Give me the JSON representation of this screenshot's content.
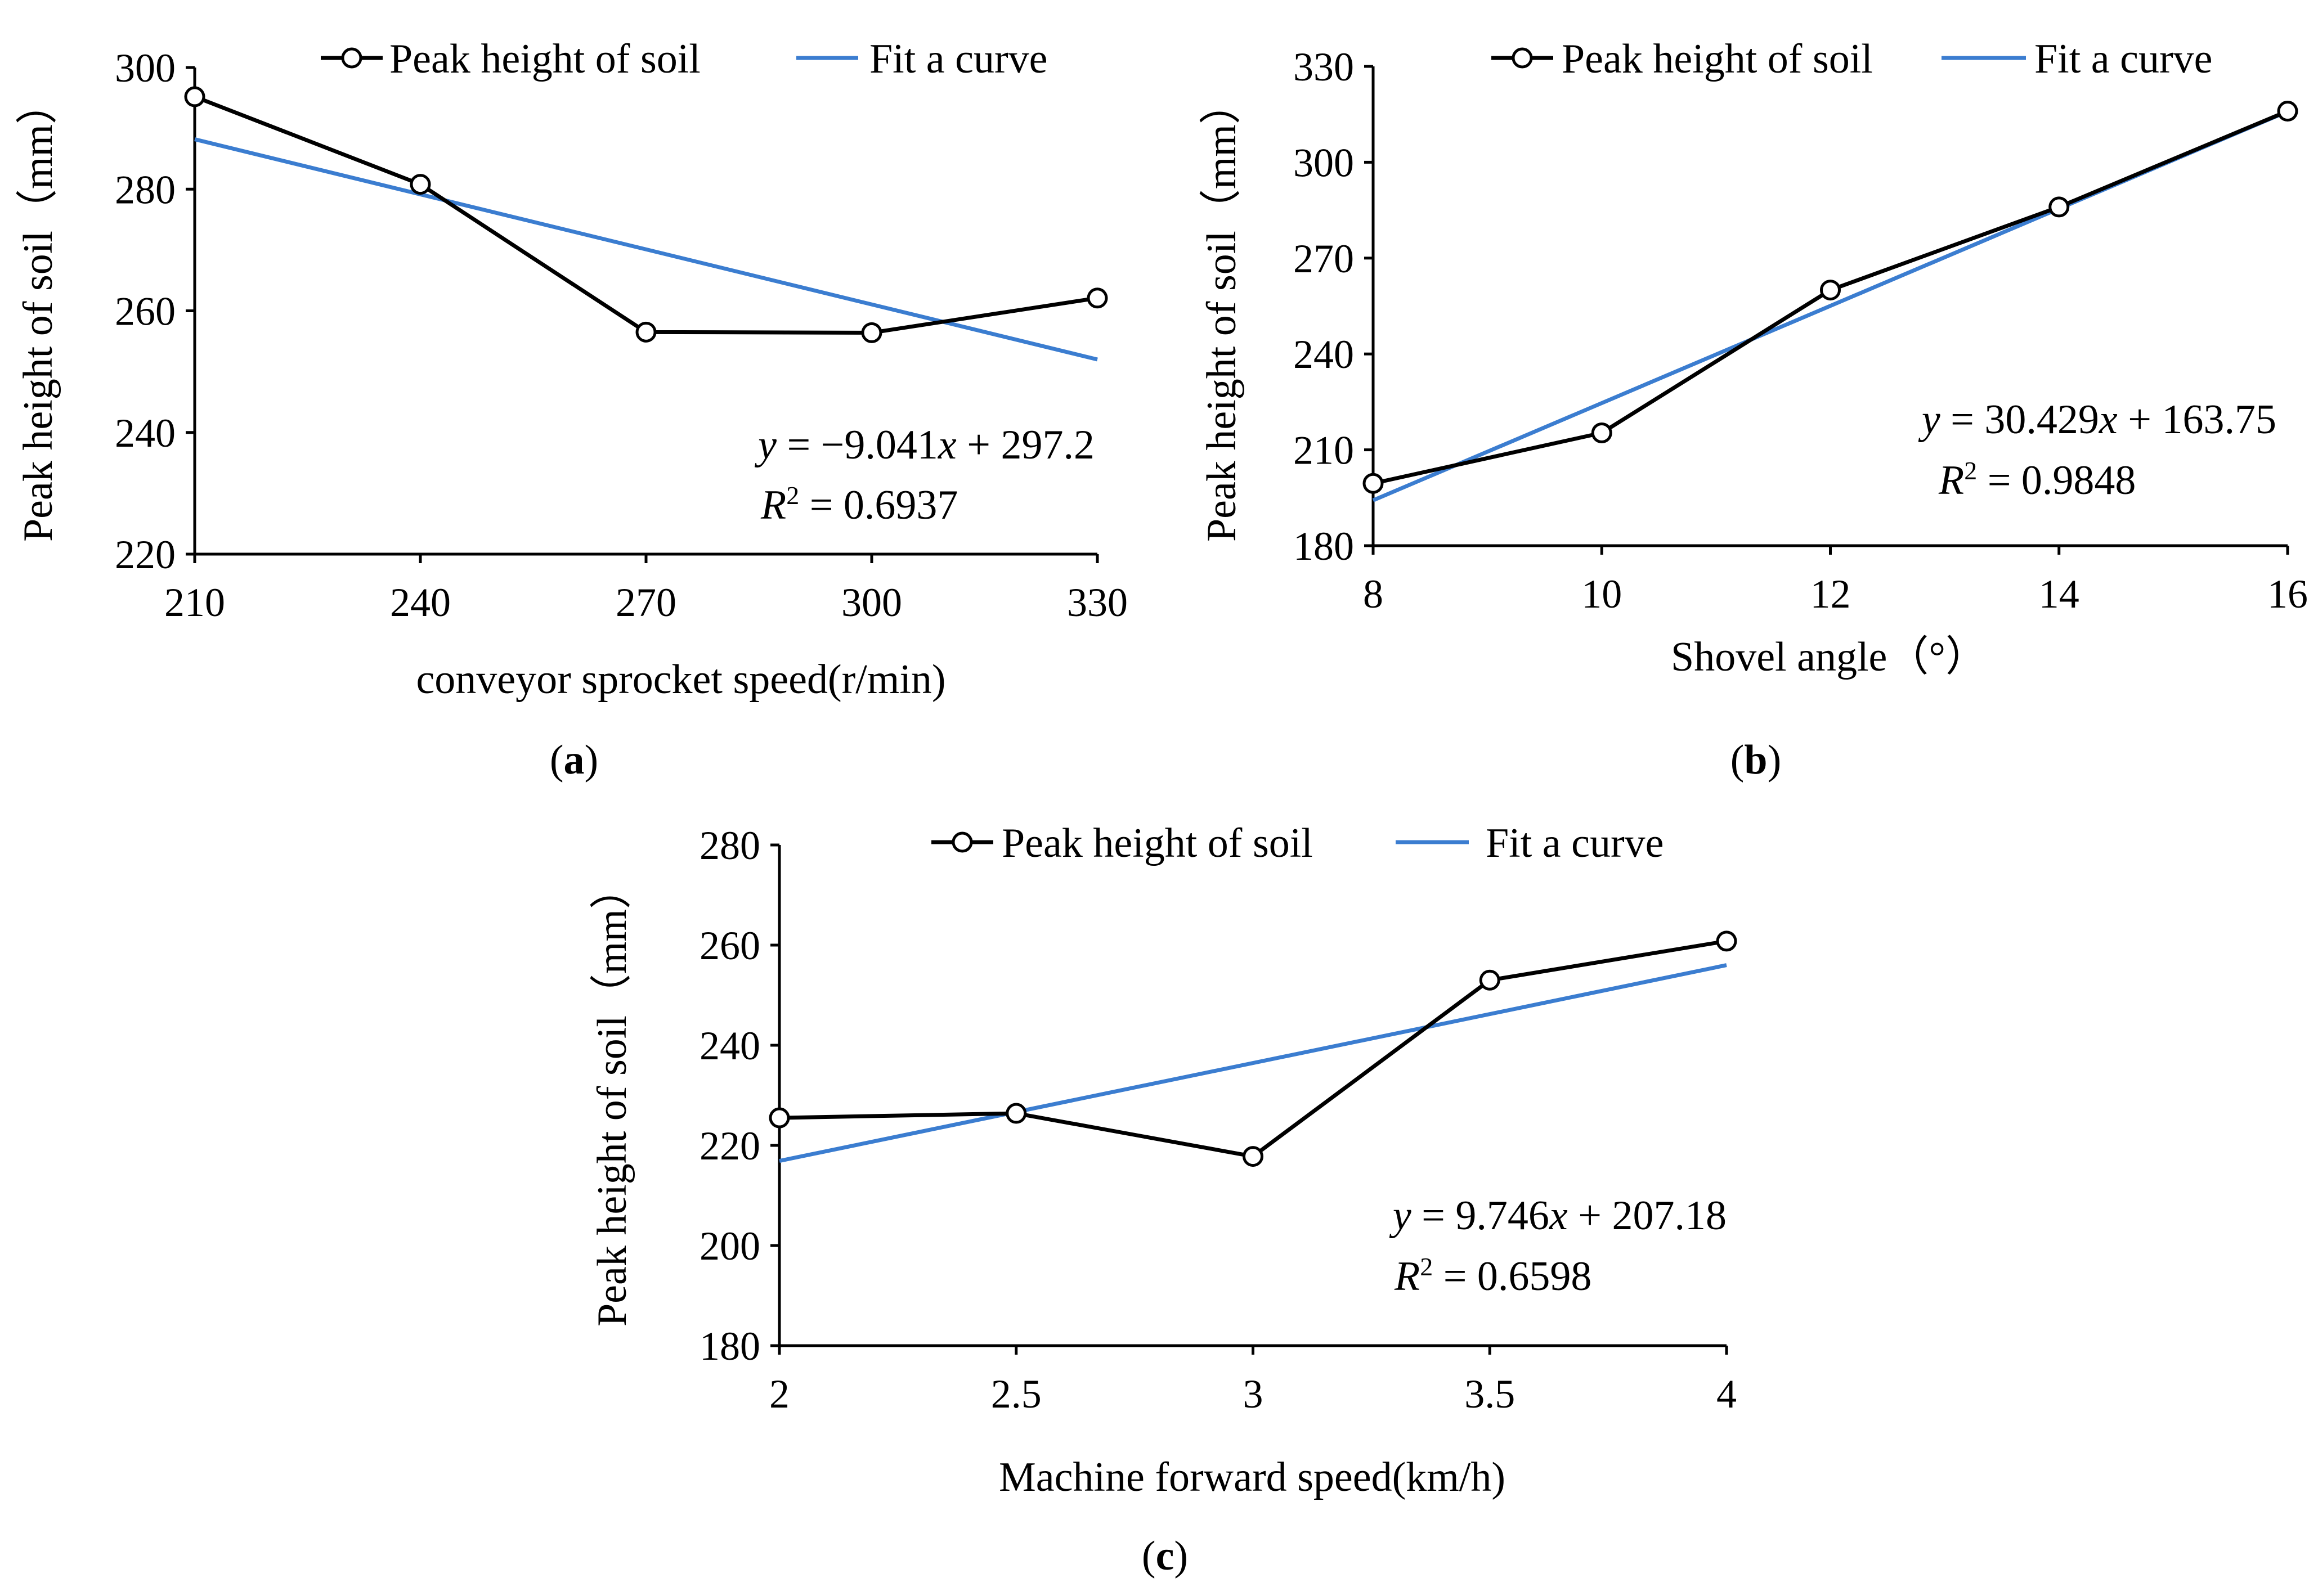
{
  "colors": {
    "observed": "#000000",
    "fit": "#3B7DD0",
    "marker_fill": "#ffffff"
  },
  "chart_data": [
    {
      "id": "a",
      "type": "line",
      "caption_letter": "a",
      "xlabel": "conveyor sprocket speed(r/min)",
      "ylabel": "Peak height of soil（mm）",
      "xlim": [
        210,
        330
      ],
      "ylim": [
        220,
        300
      ],
      "xticks": [
        210,
        240,
        270,
        300,
        330
      ],
      "xtick_labels": [
        "210",
        "240",
        "270",
        "300",
        "330"
      ],
      "yticks": [
        220,
        240,
        260,
        280,
        300
      ],
      "legend": [
        "Peak height of soil",
        "Fit a curve"
      ],
      "legend_position": "top",
      "series": [
        {
          "name": "Peak height of soil",
          "x": [
            210,
            240,
            270,
            300,
            330
          ],
          "y": [
            295.2,
            280.8,
            256.5,
            256.4,
            262.1
          ]
        },
        {
          "name": "Fit a curve",
          "x": [
            210,
            330
          ],
          "y": [
            288.2,
            252.0
          ]
        }
      ],
      "equation_var": "y",
      "equation_rest": " = −9.041",
      "equation_x": "x",
      "equation_tail": " + 297.2",
      "r2_label": "R",
      "r2_rest": " = 0.6937"
    },
    {
      "id": "b",
      "type": "line",
      "caption_letter": "b",
      "xlabel": "Shovel angle（°）",
      "ylabel": "Peak height of soil（mm）",
      "xlim": [
        8,
        16
      ],
      "ylim": [
        180,
        330
      ],
      "xticks": [
        8,
        10,
        12,
        14,
        16
      ],
      "xtick_labels": [
        "8",
        "10",
        "12",
        "14",
        "16"
      ],
      "yticks": [
        180,
        210,
        240,
        270,
        300,
        330
      ],
      "legend": [
        "Peak height of soil",
        "Fit a curve"
      ],
      "legend_position": "top",
      "series": [
        {
          "name": "Peak height of soil",
          "x": [
            8,
            10,
            12,
            14,
            16
          ],
          "y": [
            199.5,
            215.3,
            260.0,
            286.0,
            316.0
          ]
        },
        {
          "name": "Fit a curve",
          "x": [
            8,
            16
          ],
          "y": [
            194.2,
            315.9
          ]
        }
      ],
      "equation_var": "y",
      "equation_rest": " = 30.429",
      "equation_x": "x",
      "equation_tail": " + 163.75",
      "r2_label": "R",
      "r2_rest": " = 0.9848"
    },
    {
      "id": "c",
      "type": "line",
      "caption_letter": "c",
      "xlabel": "Machine forward speed(km/h)",
      "ylabel": "Peak height of soil（mm）",
      "xlim": [
        2,
        4
      ],
      "ylim": [
        180,
        280
      ],
      "xticks": [
        2,
        2.5,
        3,
        3.5,
        4
      ],
      "xtick_labels": [
        "2",
        "2.5",
        "3",
        "3.5",
        "4"
      ],
      "yticks": [
        180,
        200,
        220,
        240,
        260,
        280
      ],
      "legend": [
        "Peak height of soil",
        "Fit a curve"
      ],
      "legend_position": "top",
      "series": [
        {
          "name": "Peak height of soil",
          "x": [
            2,
            2.5,
            3,
            3.5,
            4
          ],
          "y": [
            225.5,
            226.4,
            217.8,
            253.0,
            260.8
          ]
        },
        {
          "name": "Fit a curve",
          "x": [
            2,
            4
          ],
          "y": [
            216.9,
            256.0
          ]
        }
      ],
      "equation_var": "y",
      "equation_rest": " = 9.746",
      "equation_x": "x",
      "equation_tail": " + 207.18",
      "r2_label": "R",
      "r2_rest": " = 0.6598"
    }
  ]
}
